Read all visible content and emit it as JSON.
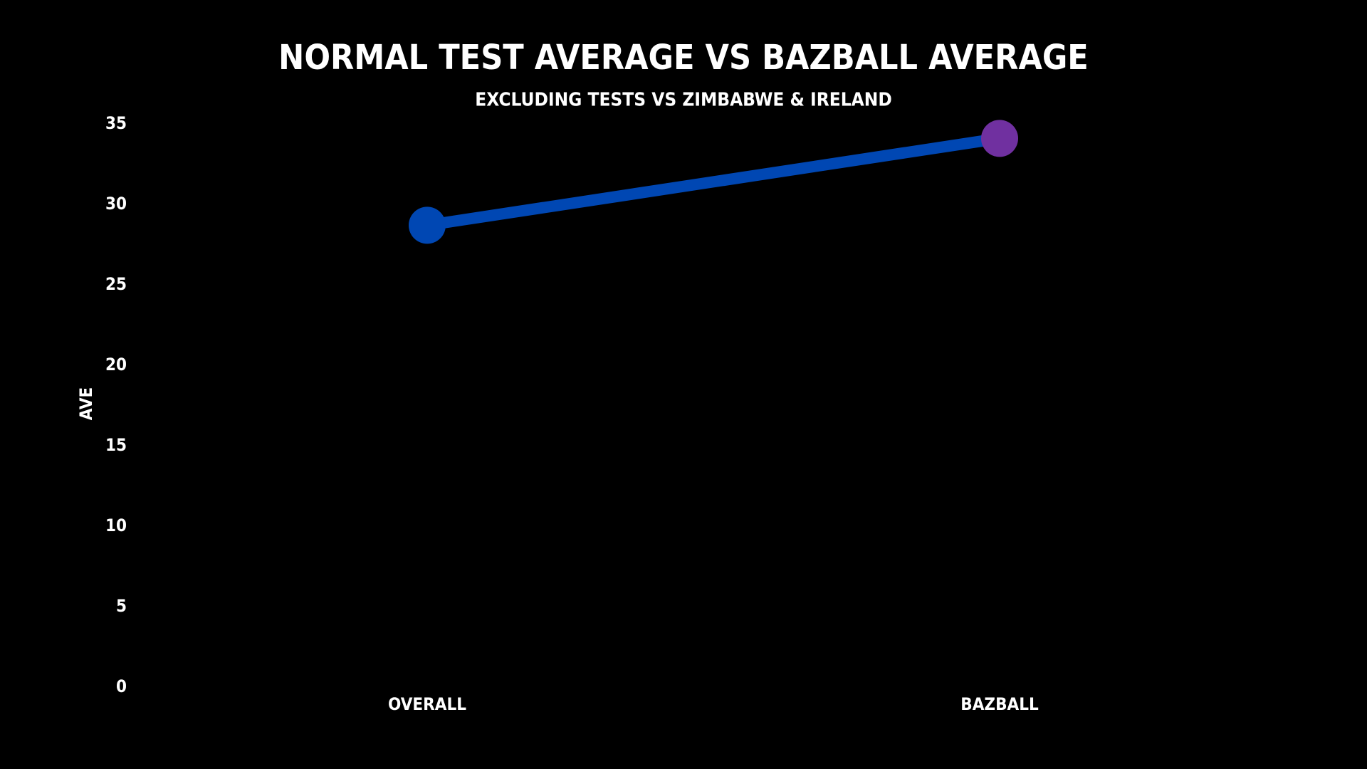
{
  "chart_data": {
    "type": "line",
    "title": "NORMAL TEST AVERAGE VS BAZBALL AVERAGE",
    "subtitle": "EXCLUDING TESTS VS ZIMBABWE & IRELAND",
    "y_label": "AVE",
    "categories": [
      "OVERALL",
      "BAZBALL"
    ],
    "values": [
      28.7,
      34.1
    ],
    "color": "#0047b3",
    "point_colors": [
      "#0047b3",
      "#7030a0"
    ],
    "ylim": [
      0,
      35
    ],
    "yticks": [
      0,
      5,
      10,
      15,
      20,
      25,
      30,
      35
    ],
    "grid": false
  }
}
